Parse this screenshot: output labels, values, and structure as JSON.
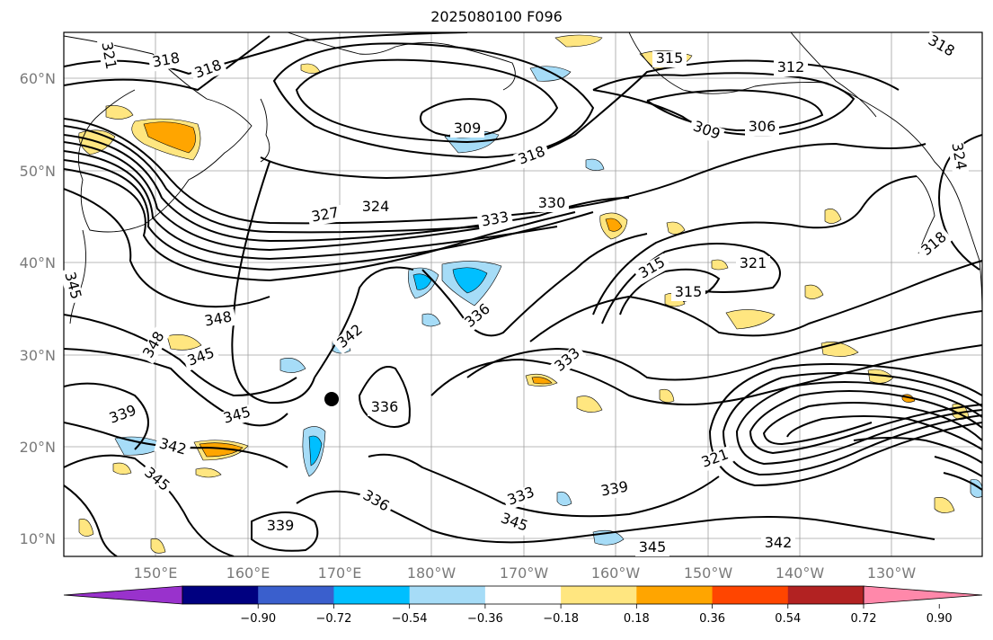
{
  "title": "2025080100 F096",
  "map": {
    "lat_labels": [
      "60°N",
      "50°N",
      "40°N",
      "30°N",
      "20°N",
      "10°N"
    ],
    "lon_labels": [
      "150°E",
      "160°E",
      "170°E",
      "180°W",
      "170°W",
      "160°W",
      "150°W",
      "140°W",
      "130°W"
    ],
    "contour_labels": [
      "321",
      "318",
      "318",
      "318",
      "315",
      "312",
      "309",
      "309",
      "306",
      "318",
      "324",
      "327",
      "324",
      "333",
      "330",
      "318",
      "315",
      "321",
      "315",
      "345",
      "348",
      "348",
      "342",
      "345",
      "336",
      "333",
      "339",
      "345",
      "336",
      "342",
      "345",
      "336",
      "339",
      "333",
      "339",
      "321",
      "345",
      "345",
      "342"
    ],
    "marker": "storm-center-dot"
  },
  "colorbar": {
    "ticks": [
      "−0.90",
      "−0.72",
      "−0.54",
      "−0.36",
      "−0.18",
      "0.18",
      "0.36",
      "0.54",
      "0.72",
      "0.90"
    ],
    "colors": [
      "#9932cc",
      "#000080",
      "#3a5fcd",
      "#00bfff",
      "#a6dcf7",
      "#ffffff",
      "#ffe680",
      "#ffa500",
      "#ff4500",
      "#b22222",
      "#ff88aa"
    ],
    "extend": "both"
  }
}
